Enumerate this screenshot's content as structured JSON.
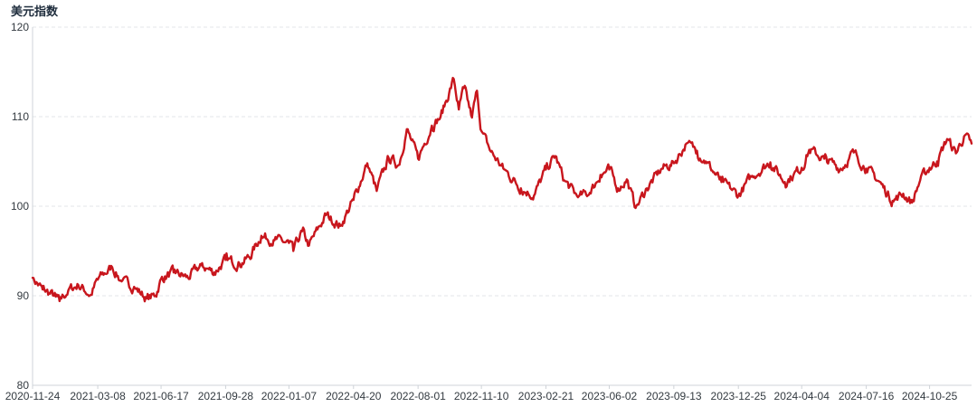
{
  "chart_data": {
    "type": "line",
    "title": "美元指数",
    "xlabel": "",
    "ylabel": "",
    "ylim": [
      80,
      120
    ],
    "yticks": [
      80,
      90,
      100,
      110,
      120
    ],
    "grid": true,
    "legend": "none",
    "x_ticks": [
      "2020-11-24",
      "2021-03-08",
      "2021-06-17",
      "2021-09-28",
      "2022-01-07",
      "2022-04-20",
      "2022-08-01",
      "2022-11-10",
      "2023-02-21",
      "2023-06-02",
      "2023-09-13",
      "2023-12-25",
      "2024-04-04",
      "2024-07-16",
      "2024-10-25"
    ],
    "x_range": [
      "2020-11-24",
      "2024-12-31"
    ],
    "series": [
      {
        "color": "#c8161d",
        "points": [
          [
            "2020-11-24",
            92.0
          ],
          [
            "2020-12-10",
            90.7
          ],
          [
            "2020-12-31",
            89.9
          ],
          [
            "2021-01-06",
            89.4
          ],
          [
            "2021-01-20",
            90.6
          ],
          [
            "2021-02-05",
            91.2
          ],
          [
            "2021-02-25",
            90.1
          ],
          [
            "2021-03-08",
            91.8
          ],
          [
            "2021-03-31",
            93.2
          ],
          [
            "2021-04-15",
            91.6
          ],
          [
            "2021-05-05",
            91.0
          ],
          [
            "2021-05-25",
            89.7
          ],
          [
            "2021-06-08",
            90.0
          ],
          [
            "2021-06-17",
            91.9
          ],
          [
            "2021-07-07",
            92.6
          ],
          [
            "2021-07-30",
            92.0
          ],
          [
            "2021-08-20",
            93.4
          ],
          [
            "2021-09-10",
            92.6
          ],
          [
            "2021-09-28",
            94.0
          ],
          [
            "2021-10-20",
            93.6
          ],
          [
            "2021-11-05",
            94.3
          ],
          [
            "2021-11-24",
            96.7
          ],
          [
            "2021-12-15",
            96.2
          ],
          [
            "2022-01-07",
            95.9
          ],
          [
            "2022-01-14",
            95.0
          ],
          [
            "2022-01-28",
            97.2
          ],
          [
            "2022-02-08",
            95.6
          ],
          [
            "2022-03-07",
            99.0
          ],
          [
            "2022-03-30",
            97.8
          ],
          [
            "2022-04-20",
            100.7
          ],
          [
            "2022-05-12",
            104.8
          ],
          [
            "2022-05-27",
            101.7
          ],
          [
            "2022-06-15",
            105.4
          ],
          [
            "2022-07-01",
            104.6
          ],
          [
            "2022-07-14",
            108.6
          ],
          [
            "2022-08-01",
            105.3
          ],
          [
            "2022-08-23",
            109.0
          ],
          [
            "2022-09-06",
            110.0
          ],
          [
            "2022-09-27",
            114.2
          ],
          [
            "2022-10-05",
            110.8
          ],
          [
            "2022-10-13",
            113.2
          ],
          [
            "2022-10-26",
            109.9
          ],
          [
            "2022-11-03",
            112.9
          ],
          [
            "2022-11-10",
            108.4
          ],
          [
            "2022-11-25",
            106.1
          ],
          [
            "2022-12-15",
            104.2
          ],
          [
            "2023-01-12",
            102.0
          ],
          [
            "2023-02-02",
            101.2
          ],
          [
            "2023-02-21",
            104.1
          ],
          [
            "2023-03-08",
            105.6
          ],
          [
            "2023-03-22",
            102.9
          ],
          [
            "2023-04-13",
            101.0
          ],
          [
            "2023-05-02",
            101.5
          ],
          [
            "2023-05-19",
            103.5
          ],
          [
            "2023-06-02",
            104.1
          ],
          [
            "2023-06-16",
            102.0
          ],
          [
            "2023-06-30",
            103.0
          ],
          [
            "2023-07-14",
            99.8
          ],
          [
            "2023-08-01",
            102.0
          ],
          [
            "2023-08-25",
            104.2
          ],
          [
            "2023-09-13",
            104.8
          ],
          [
            "2023-10-03",
            107.0
          ],
          [
            "2023-10-20",
            106.2
          ],
          [
            "2023-11-03",
            105.0
          ],
          [
            "2023-11-28",
            102.7
          ],
          [
            "2023-12-15",
            101.8
          ],
          [
            "2023-12-25",
            101.2
          ],
          [
            "2024-01-16",
            103.4
          ],
          [
            "2024-02-14",
            104.9
          ],
          [
            "2024-03-08",
            102.7
          ],
          [
            "2024-04-04",
            104.3
          ],
          [
            "2024-04-16",
            106.3
          ],
          [
            "2024-05-10",
            105.3
          ],
          [
            "2024-06-05",
            104.2
          ],
          [
            "2024-06-26",
            106.0
          ],
          [
            "2024-07-16",
            104.2
          ],
          [
            "2024-08-05",
            102.8
          ],
          [
            "2024-08-27",
            100.6
          ],
          [
            "2024-09-13",
            101.4
          ],
          [
            "2024-09-27",
            100.4
          ],
          [
            "2024-10-10",
            102.9
          ],
          [
            "2024-10-25",
            104.3
          ],
          [
            "2024-11-06",
            105.0
          ],
          [
            "2024-11-22",
            107.5
          ],
          [
            "2024-12-06",
            105.9
          ],
          [
            "2024-12-19",
            107.8
          ],
          [
            "2024-12-31",
            107.0
          ]
        ]
      }
    ]
  }
}
